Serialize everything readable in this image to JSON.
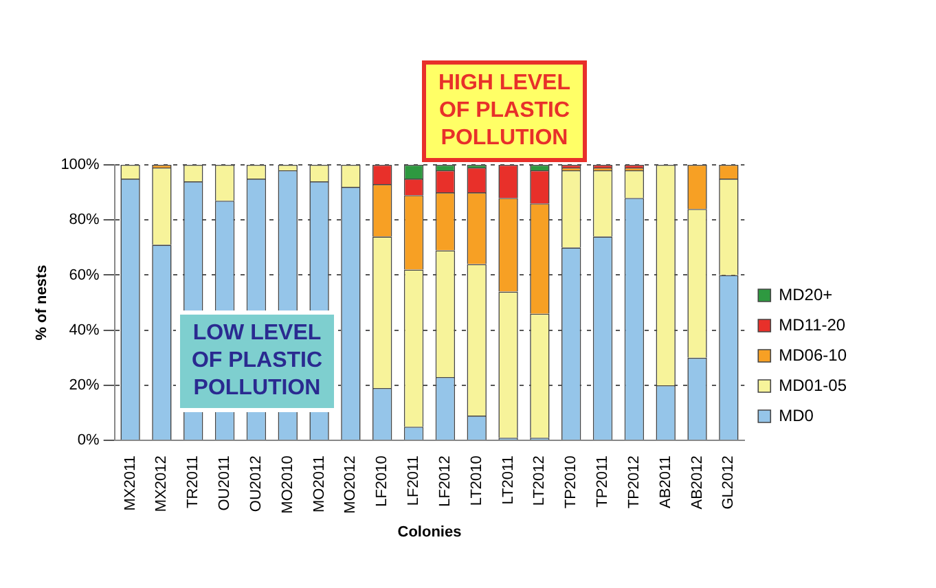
{
  "chart_data": {
    "type": "bar",
    "stacked": true,
    "xlabel": "Colonies",
    "ylabel": "% of nests",
    "categories": [
      "MX2011",
      "MX2012",
      "TR2011",
      "OU2011",
      "OU2012",
      "MO2010",
      "MO2011",
      "MO2012",
      "LF2010",
      "LF2011",
      "LF2012",
      "LT2010",
      "LT2011",
      "LT2012",
      "TP2010",
      "TP2011",
      "TP2012",
      "AB2011",
      "AB2012",
      "GL2012"
    ],
    "series": [
      {
        "name": "MD0",
        "color": "#95c5e9",
        "values": [
          95,
          71,
          94,
          87,
          95,
          98,
          94,
          92,
          19,
          5,
          23,
          9,
          1,
          1,
          70,
          74,
          88,
          20,
          30,
          60
        ]
      },
      {
        "name": "MD01-05",
        "color": "#f7f39a",
        "values": [
          5,
          28,
          6,
          13,
          5,
          2,
          6,
          8,
          55,
          57,
          46,
          55,
          53,
          45,
          28,
          24,
          10,
          80,
          54,
          35
        ]
      },
      {
        "name": "MD06-10",
        "color": "#f7a024",
        "values": [
          0,
          1,
          0,
          0,
          0,
          0,
          0,
          0,
          19,
          27,
          21,
          26,
          34,
          40,
          1,
          1,
          1,
          0,
          16,
          5
        ]
      },
      {
        "name": "MD11-20",
        "color": "#e8302a",
        "values": [
          0,
          0,
          0,
          0,
          0,
          0,
          0,
          0,
          7,
          6,
          8,
          9,
          12,
          12,
          1,
          1,
          1,
          0,
          0,
          0
        ]
      },
      {
        "name": "MD20+",
        "color": "#2e9940",
        "values": [
          0,
          0,
          0,
          0,
          0,
          0,
          0,
          0,
          0,
          5,
          2,
          1,
          0,
          2,
          0,
          0,
          0,
          0,
          0,
          0
        ]
      }
    ],
    "ylim": [
      0,
      100
    ],
    "yticks": [
      {
        "value": 0,
        "label": "0%"
      },
      {
        "value": 20,
        "label": "20%"
      },
      {
        "value": 40,
        "label": "40%"
      },
      {
        "value": 60,
        "label": "60%"
      },
      {
        "value": 80,
        "label": "80%"
      },
      {
        "value": 100,
        "label": "100%"
      }
    ],
    "grid": "y",
    "legend": "right",
    "annotations": [
      "HIGH LEVEL OF PLASTIC POLLUTION",
      "LOW LEVEL OF PLASTIC POLLUTION"
    ]
  }
}
